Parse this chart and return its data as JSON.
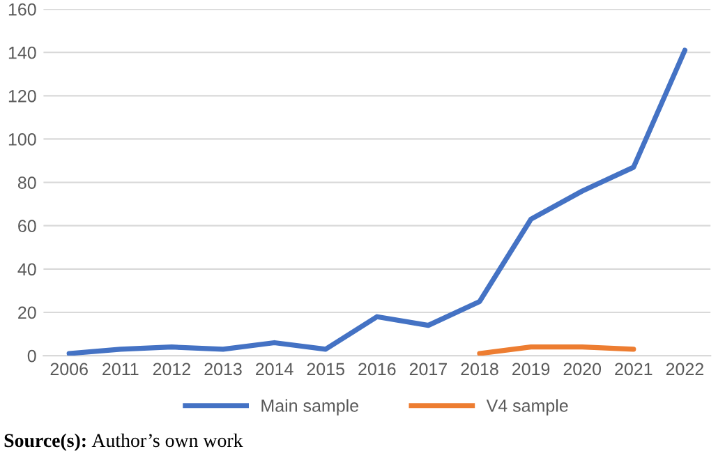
{
  "chart_data": {
    "type": "line",
    "categories": [
      "2006",
      "2011",
      "2012",
      "2013",
      "2014",
      "2015",
      "2016",
      "2017",
      "2018",
      "2019",
      "2020",
      "2021",
      "2022"
    ],
    "series": [
      {
        "name": "Main sample",
        "color": "#4472c4",
        "values": [
          1,
          3,
          4,
          3,
          6,
          3,
          18,
          14,
          25,
          63,
          76,
          87,
          141
        ]
      },
      {
        "name": "V4 sample",
        "color": "#ed7d31",
        "values": [
          null,
          null,
          null,
          null,
          null,
          null,
          null,
          null,
          1,
          4,
          4,
          3,
          null
        ]
      }
    ],
    "ylim": [
      0,
      160
    ],
    "yticks": [
      0,
      20,
      40,
      60,
      80,
      100,
      120,
      140,
      160
    ],
    "grid": "y",
    "legend": "bottom",
    "marker": "none",
    "line_style": "solid",
    "annotations": [
      "Source(s): Author’s own work"
    ]
  }
}
